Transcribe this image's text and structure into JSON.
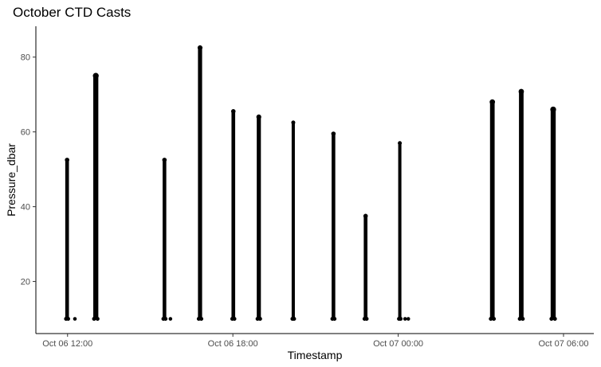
{
  "chart_data": {
    "type": "scatter",
    "title": "October CTD Casts",
    "xlabel": "Timestamp",
    "ylabel": "Pressure_dbar",
    "x_ticks": [
      "Oct 06 12:00",
      "Oct 06 18:00",
      "Oct 07 00:00",
      "Oct 07 06:00"
    ],
    "x_tick_hours": [
      12,
      18,
      24,
      30
    ],
    "xlim_hours": [
      10.85,
      31.1
    ],
    "y_ticks": [
      20,
      40,
      60,
      80
    ],
    "ylim": [
      9.9,
      82.5
    ],
    "grid": false,
    "legend": "none",
    "point_color": "#000000",
    "casts": [
      {
        "start": "Oct 06 11:55",
        "end": "Oct 06 12:03",
        "min_pressure": 10,
        "max_pressure": 52.5
      },
      {
        "start": "Oct 06 12:56",
        "end": "Oct 06 13:07",
        "min_pressure": 10,
        "max_pressure": 75
      },
      {
        "start": "Oct 06 15:27",
        "end": "Oct 06 15:35",
        "min_pressure": 10,
        "max_pressure": 52.5
      },
      {
        "start": "Oct 06 16:44",
        "end": "Oct 06 16:53",
        "min_pressure": 10,
        "max_pressure": 82.5
      },
      {
        "start": "Oct 06 17:57",
        "end": "Oct 06 18:05",
        "min_pressure": 10,
        "max_pressure": 65.5
      },
      {
        "start": "Oct 06 18:52",
        "end": "Oct 06 19:01",
        "min_pressure": 10,
        "max_pressure": 64
      },
      {
        "start": "Oct 06 20:08",
        "end": "Oct 06 20:15",
        "min_pressure": 10,
        "max_pressure": 62.5
      },
      {
        "start": "Oct 06 21:35",
        "end": "Oct 06 21:43",
        "min_pressure": 10,
        "max_pressure": 59.5
      },
      {
        "start": "Oct 06 22:45",
        "end": "Oct 06 22:53",
        "min_pressure": 10,
        "max_pressure": 37.5
      },
      {
        "start": "Oct 07 00:00",
        "end": "Oct 07 00:07",
        "min_pressure": 10,
        "max_pressure": 57
      },
      {
        "start": "Oct 07 03:20",
        "end": "Oct 07 03:30",
        "min_pressure": 10,
        "max_pressure": 68
      },
      {
        "start": "Oct 07 04:23",
        "end": "Oct 07 04:33",
        "min_pressure": 10,
        "max_pressure": 70.8
      },
      {
        "start": "Oct 07 05:32",
        "end": "Oct 07 05:43",
        "min_pressure": 10,
        "max_pressure": 66
      }
    ],
    "stray_points": [
      {
        "time": "Oct 06 12:16",
        "pressure": 10
      },
      {
        "time": "Oct 06 15:44",
        "pressure": 10
      },
      {
        "time": "Oct 07 00:15",
        "pressure": 10
      },
      {
        "time": "Oct 07 00:22",
        "pressure": 10
      }
    ]
  }
}
